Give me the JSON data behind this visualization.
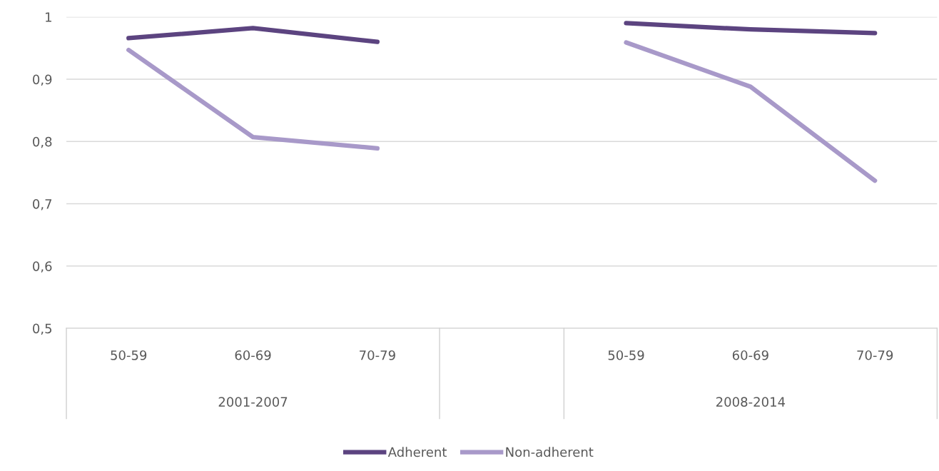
{
  "chart_data": {
    "type": "line",
    "categories": [
      "50-59",
      "60-69",
      "70-79",
      null,
      "50-59",
      "60-69",
      "70-79"
    ],
    "series": [
      {
        "name": "Adherent",
        "color": "#5c4480",
        "values": [
          0.966,
          0.982,
          0.96,
          null,
          0.99,
          0.98,
          0.974
        ]
      },
      {
        "name": "Non-adherent",
        "color": "#a899c9",
        "values": [
          0.947,
          0.807,
          0.789,
          null,
          0.959,
          0.888,
          0.737
        ]
      }
    ],
    "annotations": [
      "2001-2007",
      "2008-2014"
    ],
    "ylim": [
      0.5,
      1
    ],
    "yticks": [
      {
        "value": 0.5,
        "label": "0,5"
      },
      {
        "value": 0.6,
        "label": "0,6"
      },
      {
        "value": 0.7,
        "label": "0,7"
      },
      {
        "value": 0.8,
        "label": "0,8"
      },
      {
        "value": 0.9,
        "label": "0,9"
      },
      1
    ],
    "grid": "y",
    "legend": "bottom",
    "marker": "none",
    "line_style": "solid"
  }
}
